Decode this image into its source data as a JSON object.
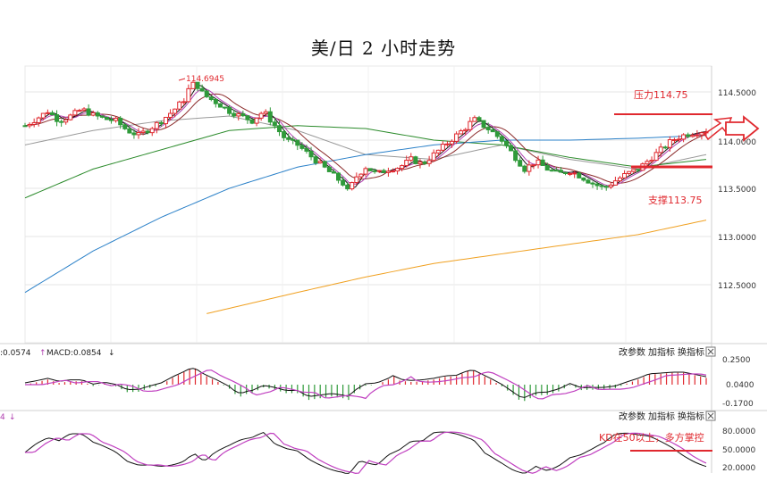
{
  "title": "美/日 2 小时走势",
  "colors": {
    "up": "#e0282e",
    "down": "#2f9a3a",
    "grid": "#e4e4e4",
    "ma5": "#111111",
    "ma10": "#b040b0",
    "ma20": "#999999",
    "ma30": "#8b2a2a",
    "ma60": "#2a8a2a",
    "ma120": "#2a80c8",
    "ma250": "#f0a020",
    "annotation": "#e0282e"
  },
  "main_panel": {
    "y_ticks": [
      "114.5000",
      "114.0000",
      "113.5000",
      "113.0000",
      "112.5000"
    ],
    "peak_label": "114.6945",
    "resistance": {
      "label": "压力114.75",
      "value": 114.75
    },
    "support": {
      "label": "支撑113.75",
      "value": 113.75
    }
  },
  "macd_panel": {
    "header_left": ":0.0574",
    "header_right": "MACD:0.0854",
    "y_ticks": [
      "0.2500",
      "0.0400",
      "-0.1700"
    ],
    "tools": [
      "改参数",
      "加指标",
      "换指标"
    ]
  },
  "kd_panel": {
    "header": "4",
    "y_ticks": [
      "80.0000",
      "50.0000",
      "20.0000"
    ],
    "tools": [
      "改参数",
      "加指标",
      "换指标"
    ],
    "annotation": "KD在50以上，多方掌控"
  },
  "chart_data": {
    "type": "candlestick",
    "title": "美/日 2 小时走势",
    "ylim": [
      112.1,
      114.78
    ],
    "price_points": [
      [
        0,
        114.15
      ],
      [
        10,
        114.22
      ],
      [
        20,
        114.3
      ],
      [
        30,
        114.2
      ],
      [
        40,
        114.25
      ],
      [
        50,
        114.32
      ],
      [
        60,
        114.26
      ],
      [
        70,
        114.22
      ],
      [
        80,
        114.2
      ],
      [
        90,
        114.1
      ],
      [
        100,
        114.05
      ],
      [
        110,
        114.12
      ],
      [
        120,
        114.2
      ],
      [
        130,
        114.3
      ],
      [
        140,
        114.42
      ],
      [
        145,
        114.55
      ],
      [
        150,
        114.6
      ],
      [
        155,
        114.5
      ],
      [
        160,
        114.45
      ],
      [
        170,
        114.38
      ],
      [
        180,
        114.3
      ],
      [
        190,
        114.25
      ],
      [
        200,
        114.2
      ],
      [
        210,
        114.3
      ],
      [
        220,
        114.15
      ],
      [
        230,
        114.0
      ],
      [
        240,
        113.95
      ],
      [
        250,
        113.85
      ],
      [
        260,
        113.75
      ],
      [
        270,
        113.65
      ],
      [
        280,
        113.55
      ],
      [
        285,
        113.45
      ],
      [
        290,
        113.6
      ],
      [
        300,
        113.72
      ],
      [
        310,
        113.65
      ],
      [
        320,
        113.7
      ],
      [
        330,
        113.72
      ],
      [
        340,
        113.8
      ],
      [
        350,
        113.75
      ],
      [
        360,
        113.85
      ],
      [
        370,
        113.95
      ],
      [
        380,
        114.05
      ],
      [
        390,
        114.15
      ],
      [
        395,
        114.22
      ],
      [
        400,
        114.18
      ],
      [
        410,
        114.1
      ],
      [
        420,
        114.0
      ],
      [
        430,
        113.85
      ],
      [
        440,
        113.7
      ],
      [
        450,
        113.78
      ],
      [
        460,
        113.7
      ],
      [
        470,
        113.65
      ],
      [
        480,
        113.68
      ],
      [
        490,
        113.62
      ],
      [
        500,
        113.55
      ],
      [
        510,
        113.5
      ],
      [
        520,
        113.58
      ],
      [
        530,
        113.65
      ],
      [
        540,
        113.7
      ],
      [
        550,
        113.8
      ],
      [
        560,
        113.9
      ],
      [
        570,
        114.0
      ],
      [
        580,
        114.05
      ],
      [
        590,
        114.08
      ],
      [
        600,
        114.1
      ]
    ],
    "ma_series": [
      {
        "name": "ma20",
        "points": [
          [
            0,
            113.95
          ],
          [
            60,
            114.1
          ],
          [
            120,
            114.2
          ],
          [
            180,
            114.25
          ],
          [
            240,
            114.1
          ],
          [
            300,
            113.85
          ],
          [
            360,
            113.8
          ],
          [
            420,
            113.95
          ],
          [
            480,
            113.8
          ],
          [
            540,
            113.7
          ],
          [
            600,
            113.85
          ]
        ]
      },
      {
        "name": "ma60",
        "points": [
          [
            0,
            113.4
          ],
          [
            60,
            113.7
          ],
          [
            120,
            113.9
          ],
          [
            180,
            114.1
          ],
          [
            240,
            114.15
          ],
          [
            300,
            114.12
          ],
          [
            360,
            114.0
          ],
          [
            420,
            113.95
          ],
          [
            480,
            113.82
          ],
          [
            540,
            113.72
          ],
          [
            600,
            113.8
          ]
        ]
      },
      {
        "name": "ma120",
        "points": [
          [
            0,
            112.42
          ],
          [
            60,
            112.85
          ],
          [
            120,
            113.2
          ],
          [
            180,
            113.5
          ],
          [
            240,
            113.72
          ],
          [
            300,
            113.85
          ],
          [
            360,
            113.95
          ],
          [
            420,
            114.0
          ],
          [
            480,
            114.0
          ],
          [
            540,
            114.02
          ],
          [
            600,
            114.05
          ]
        ]
      },
      {
        "name": "ma250",
        "points": [
          [
            160,
            112.2
          ],
          [
            240,
            112.42
          ],
          [
            300,
            112.58
          ],
          [
            360,
            112.72
          ],
          [
            420,
            112.82
          ],
          [
            480,
            112.92
          ],
          [
            540,
            113.02
          ],
          [
            600,
            113.17
          ]
        ]
      }
    ]
  }
}
